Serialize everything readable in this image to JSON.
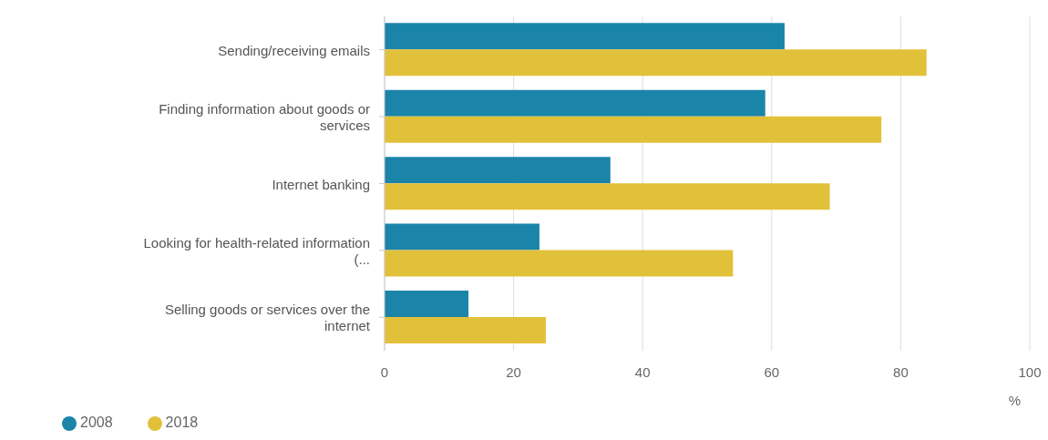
{
  "chart_data": {
    "type": "bar",
    "orientation": "horizontal",
    "xlabel": "%",
    "categories": [
      "Sending/receiving emails",
      "Finding information about goods or services",
      "Internet banking",
      "Looking for health-related information (...",
      "Selling goods or services over the internet"
    ],
    "series": [
      {
        "name": "2008",
        "color": "#1b84a9",
        "values": [
          62,
          59,
          35,
          24,
          13
        ]
      },
      {
        "name": "2018",
        "color": "#e2c13a",
        "values": [
          84,
          77,
          69,
          54,
          25
        ]
      }
    ],
    "xlim": [
      0,
      100
    ],
    "xticks": [
      0,
      20,
      40,
      60,
      80,
      100
    ],
    "grid": "x",
    "legend": "bottom left"
  }
}
